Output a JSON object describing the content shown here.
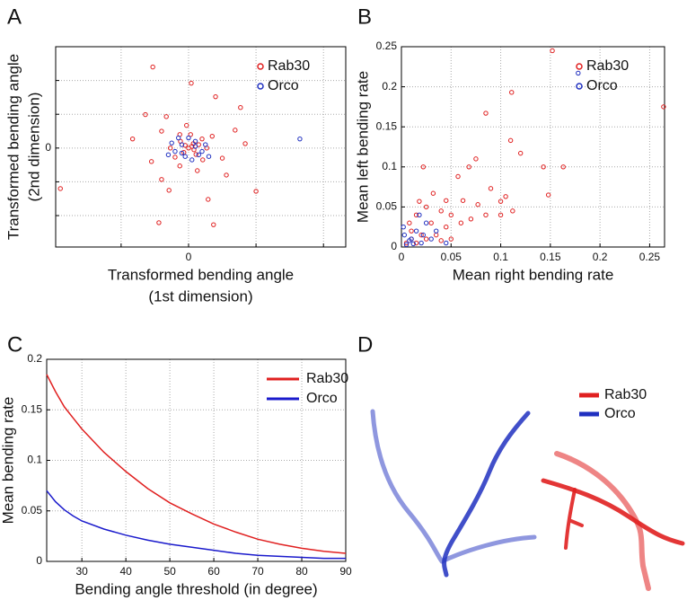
{
  "chart_data": [
    {
      "type": "scatter",
      "panel_label": "A",
      "xlabel": [
        "Transformed bending angle",
        "(1st dimension)"
      ],
      "ylabel": [
        "Transformed bending angle",
        "(2nd dimension)"
      ],
      "xlim": [
        -1.97,
        2.33
      ],
      "ylim": [
        -2.93,
        3.0
      ],
      "xticks": [
        {
          "value": -1,
          "label": null
        },
        0,
        {
          "value": 1,
          "label": null
        },
        {
          "value": 2,
          "label": null
        }
      ],
      "yticks": [
        {
          "value": -2,
          "label": null
        },
        {
          "value": -1,
          "label": null
        },
        0,
        {
          "value": 1,
          "label": null
        },
        {
          "value": 2,
          "label": null
        }
      ],
      "grid": true,
      "legend": "upper right",
      "series": [
        {
          "name": "Rab30",
          "color": "#e02020",
          "x": [
            -0.53,
            0.04,
            0.4,
            0.77,
            -0.64,
            -0.33,
            -0.83,
            0.69,
            0.84,
            -1.9,
            -0.44,
            0.37,
            1.0,
            0.56,
            0.29,
            -0.29,
            -0.4,
            0.21,
            0.13,
            -0.13,
            -0.2,
            -0.07,
            0.07,
            0.03,
            -0.03,
            -0.13,
            0.2,
            0.27,
            -0.27,
            0.11,
            0.0,
            0.05,
            -0.05,
            0.08,
            0.15,
            -0.12,
            0.35,
            -0.4,
            0.5,
            -0.55
          ],
          "values": [
            2.4,
            1.92,
            1.52,
            1.2,
            0.99,
            0.93,
            0.27,
            0.53,
            0.13,
            -1.2,
            -2.21,
            -2.27,
            -1.28,
            -0.8,
            -1.52,
            -1.25,
            -0.93,
            -0.35,
            -0.67,
            -0.53,
            -0.27,
            -0.13,
            0.13,
            0.4,
            0.67,
            0.4,
            0.27,
            0.0,
            0.0,
            -0.19,
            0.0,
            0.05,
            0.08,
            -0.05,
            0.1,
            0.2,
            0.35,
            0.5,
            -0.3,
            -0.4
          ]
        },
        {
          "name": "Orco",
          "color": "#2030c0",
          "x": [
            1.65,
            -0.1,
            0.1,
            -0.2,
            0.15,
            0.0,
            -0.15,
            0.25,
            -0.25,
            0.05,
            -0.05,
            0.2,
            -0.1,
            0.3,
            0.1,
            -0.3
          ],
          "values": [
            0.27,
            0.1,
            0.2,
            -0.1,
            -0.2,
            0.3,
            0.3,
            0.1,
            0.15,
            -0.35,
            -0.25,
            -0.1,
            -0.15,
            -0.25,
            0.05,
            -0.2
          ]
        }
      ]
    },
    {
      "type": "scatter",
      "panel_label": "B",
      "xlabel": "Mean right bending rate",
      "ylabel": "Mean left bending rate",
      "xlim": [
        0,
        0.265
      ],
      "ylim": [
        0,
        0.25
      ],
      "xticks": [
        0,
        0.05,
        0.1,
        0.15,
        0.2,
        0.25
      ],
      "yticks": [
        0,
        0.05,
        0.1,
        0.15,
        0.2,
        0.25
      ],
      "grid": true,
      "legend": "upper right",
      "series": [
        {
          "name": "Rab30",
          "color": "#e02020",
          "x": [
            0.152,
            0.264,
            0.111,
            0.085,
            0.11,
            0.12,
            0.143,
            0.163,
            0.148,
            0.075,
            0.068,
            0.022,
            0.057,
            0.09,
            0.105,
            0.1,
            0.077,
            0.062,
            0.032,
            0.045,
            0.025,
            0.04,
            0.05,
            0.015,
            0.03,
            0.045,
            0.06,
            0.01,
            0.02,
            0.035,
            0.07,
            0.085,
            0.1,
            0.112,
            0.005,
            0.01,
            0.015,
            0.025,
            0.04,
            0.05,
            0.008,
            0.018
          ],
          "values": [
            0.245,
            0.175,
            0.193,
            0.167,
            0.133,
            0.117,
            0.1,
            0.1,
            0.065,
            0.11,
            0.1,
            0.1,
            0.088,
            0.073,
            0.063,
            0.057,
            0.053,
            0.058,
            0.067,
            0.058,
            0.05,
            0.045,
            0.04,
            0.04,
            0.03,
            0.025,
            0.03,
            0.02,
            0.015,
            0.015,
            0.035,
            0.04,
            0.04,
            0.045,
            0.005,
            0.01,
            0.005,
            0.01,
            0.008,
            0.01,
            0.03,
            0.057
          ]
        },
        {
          "name": "Orco",
          "color": "#2030c0",
          "x": [
            0.178,
            0.01,
            0.005,
            0.02,
            0.015,
            0.003,
            0.03,
            0.025,
            0.012,
            0.045,
            0.018,
            0.008,
            0.022,
            0.002,
            0.035
          ],
          "values": [
            0.217,
            0.01,
            0.003,
            0.005,
            0.02,
            0.015,
            0.01,
            0.03,
            0.004,
            0.005,
            0.04,
            0.008,
            0.015,
            0.025,
            0.02
          ]
        }
      ]
    },
    {
      "type": "line",
      "panel_label": "C",
      "xlabel": "Bending angle threshold (in degree)",
      "ylabel": "Mean bending rate",
      "xlim": [
        22,
        90
      ],
      "ylim": [
        0,
        0.2
      ],
      "xticks": [
        30,
        40,
        50,
        60,
        70,
        80,
        90
      ],
      "yticks": [
        0,
        0.05,
        0.1,
        0.15,
        0.2
      ],
      "grid": true,
      "legend": "upper right",
      "x": [
        22,
        24,
        26,
        28,
        30,
        35,
        40,
        45,
        50,
        55,
        60,
        65,
        70,
        75,
        80,
        85,
        90
      ],
      "series": [
        {
          "name": "Rab30",
          "color": "#e02020",
          "values": [
            0.185,
            0.168,
            0.153,
            0.142,
            0.131,
            0.108,
            0.089,
            0.072,
            0.058,
            0.047,
            0.037,
            0.029,
            0.022,
            0.017,
            0.013,
            0.01,
            0.008
          ]
        },
        {
          "name": "Orco",
          "color": "#1a1acc",
          "values": [
            0.07,
            0.059,
            0.051,
            0.045,
            0.04,
            0.032,
            0.026,
            0.021,
            0.017,
            0.014,
            0.011,
            0.008,
            0.006,
            0.005,
            0.004,
            0.003,
            0.003
          ]
        }
      ]
    },
    {
      "type": "trajectory",
      "panel_label": "D",
      "series": [
        {
          "name": "Rab30",
          "color": "#e02020"
        },
        {
          "name": "Orco",
          "color": "#2030c0"
        }
      ]
    }
  ]
}
